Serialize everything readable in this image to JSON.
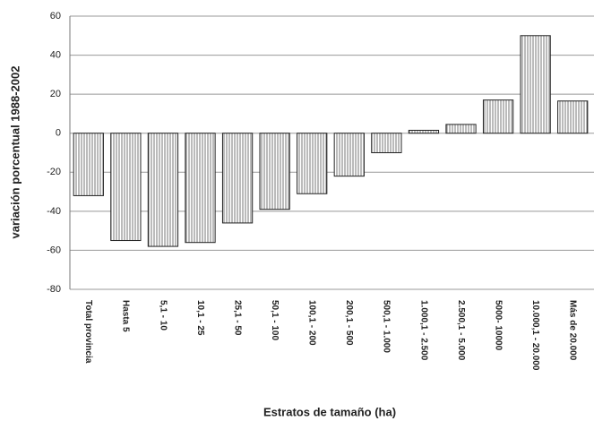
{
  "chart_data": {
    "type": "bar",
    "x_label": "Estratos de tamaño (ha)",
    "y_label": "variación porcentual 1988-2002",
    "categories": [
      "Total provincia",
      "Hasta 5",
      "5,1 - 10",
      "10,1 - 25",
      "25,1 - 50",
      "50,1 - 100",
      "100,1 - 200",
      "200,1 - 500",
      "500,1 - 1.000",
      "1.000,1 - 2.500",
      "2.500,1 - 5.000",
      "5000- 10000",
      "10.000,1 - 20.000",
      "Más de 20.000"
    ],
    "values": [
      -32,
      -55,
      -58,
      -56,
      -46,
      -39,
      -31,
      -22,
      -10,
      1.5,
      4.5,
      17,
      50,
      16.5
    ],
    "ylim": [
      -80,
      60
    ],
    "yticks": [
      -80,
      -60,
      -40,
      -20,
      0,
      20,
      40,
      60
    ],
    "grid": true
  }
}
